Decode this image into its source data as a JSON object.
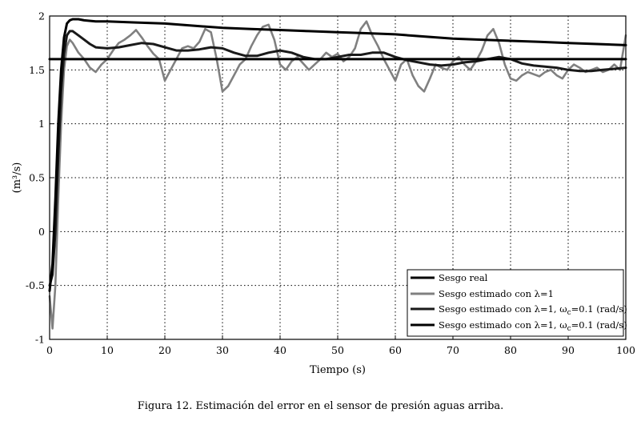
{
  "chart_data": {
    "type": "line",
    "xlabel": "Tiempo (s)",
    "ylabel": "(m³/s)",
    "xlim": [
      0,
      100
    ],
    "ylim": [
      -1,
      2
    ],
    "xticks": [
      0,
      10,
      20,
      30,
      40,
      50,
      60,
      70,
      80,
      90,
      100
    ],
    "yticks": [
      -1,
      -0.5,
      0,
      0.5,
      1,
      1.5,
      2
    ],
    "x_tick_labels": [
      "0",
      "10",
      "20",
      "30",
      "40",
      "50",
      "60",
      "70",
      "80",
      "90",
      "100"
    ],
    "y_tick_labels": [
      "-1",
      "-0.5",
      "0",
      "0.5",
      "1",
      "1.5",
      "2"
    ],
    "grid": true,
    "legend_position": "bottom-right",
    "series": [
      {
        "name": "Sesgo real",
        "color": "#000000",
        "x": [
          0,
          100
        ],
        "y": [
          1.6,
          1.6
        ]
      },
      {
        "name": "Sesgo estimado con λ=1",
        "color": "#808080",
        "x": [
          0,
          0.5,
          1,
          1.5,
          2,
          2.5,
          3,
          3.5,
          4,
          5,
          6,
          7,
          8,
          9,
          10,
          11,
          12,
          13,
          14,
          15,
          16,
          17,
          18,
          19,
          20,
          21,
          22,
          23,
          24,
          25,
          26,
          27,
          28,
          29,
          30,
          31,
          32,
          33,
          34,
          35,
          36,
          37,
          38,
          39,
          40,
          41,
          42,
          43,
          44,
          45,
          46,
          47,
          48,
          49,
          50,
          51,
          52,
          53,
          54,
          55,
          56,
          57,
          58,
          59,
          60,
          61,
          62,
          63,
          64,
          65,
          66,
          67,
          68,
          69,
          70,
          71,
          72,
          73,
          74,
          75,
          76,
          77,
          78,
          79,
          80,
          81,
          82,
          83,
          84,
          85,
          86,
          87,
          88,
          89,
          90,
          91,
          92,
          93,
          94,
          95,
          96,
          97,
          98,
          99,
          100
        ],
        "y": [
          -0.6,
          -0.9,
          -0.5,
          0.3,
          1.0,
          1.5,
          1.72,
          1.78,
          1.75,
          1.66,
          1.6,
          1.52,
          1.48,
          1.55,
          1.6,
          1.68,
          1.75,
          1.78,
          1.82,
          1.87,
          1.8,
          1.72,
          1.65,
          1.6,
          1.4,
          1.5,
          1.6,
          1.7,
          1.72,
          1.7,
          1.76,
          1.88,
          1.85,
          1.6,
          1.3,
          1.35,
          1.45,
          1.55,
          1.6,
          1.72,
          1.82,
          1.9,
          1.92,
          1.78,
          1.55,
          1.5,
          1.58,
          1.62,
          1.56,
          1.5,
          1.55,
          1.6,
          1.66,
          1.62,
          1.65,
          1.58,
          1.62,
          1.7,
          1.88,
          1.95,
          1.82,
          1.72,
          1.6,
          1.5,
          1.4,
          1.55,
          1.6,
          1.45,
          1.35,
          1.3,
          1.42,
          1.55,
          1.52,
          1.5,
          1.58,
          1.62,
          1.55,
          1.5,
          1.58,
          1.68,
          1.82,
          1.88,
          1.75,
          1.55,
          1.42,
          1.4,
          1.45,
          1.48,
          1.46,
          1.44,
          1.48,
          1.5,
          1.45,
          1.42,
          1.5,
          1.55,
          1.52,
          1.48,
          1.5,
          1.52,
          1.48,
          1.5,
          1.55,
          1.5,
          1.82
        ]
      },
      {
        "name": "Sesgo estimado con λ=1, ωc=0.1 (rad/s)",
        "color": "#1a1a1a",
        "x": [
          0,
          0.5,
          1,
          1.5,
          2,
          2.5,
          3,
          3.5,
          4,
          5,
          6,
          7,
          8,
          10,
          12,
          14,
          16,
          18,
          20,
          22,
          24,
          26,
          28,
          30,
          32,
          34,
          36,
          38,
          40,
          42,
          44,
          46,
          48,
          50,
          52,
          54,
          56,
          58,
          60,
          62,
          64,
          66,
          68,
          70,
          72,
          74,
          76,
          78,
          80,
          82,
          84,
          86,
          88,
          90,
          92,
          94,
          96,
          98,
          100
        ],
        "y": [
          -0.5,
          -0.4,
          0.0,
          0.7,
          1.3,
          1.65,
          1.82,
          1.86,
          1.86,
          1.82,
          1.78,
          1.74,
          1.71,
          1.7,
          1.71,
          1.73,
          1.75,
          1.74,
          1.71,
          1.68,
          1.68,
          1.69,
          1.71,
          1.7,
          1.66,
          1.63,
          1.63,
          1.66,
          1.68,
          1.66,
          1.62,
          1.6,
          1.6,
          1.62,
          1.64,
          1.64,
          1.66,
          1.66,
          1.62,
          1.59,
          1.57,
          1.55,
          1.54,
          1.55,
          1.57,
          1.58,
          1.6,
          1.62,
          1.6,
          1.56,
          1.54,
          1.53,
          1.52,
          1.5,
          1.49,
          1.49,
          1.5,
          1.51,
          1.52
        ]
      },
      {
        "name": "Sesgo estimado con λ=1, ωc=0.1 (rad/s)",
        "color": "#000000",
        "x": [
          0,
          0.5,
          1,
          1.5,
          2,
          2.5,
          3,
          3.5,
          4,
          5,
          6,
          8,
          10,
          15,
          20,
          25,
          30,
          35,
          40,
          45,
          50,
          55,
          60,
          65,
          70,
          75,
          80,
          85,
          90,
          95,
          100
        ],
        "y": [
          -0.55,
          -0.3,
          0.3,
          1.0,
          1.5,
          1.8,
          1.93,
          1.96,
          1.97,
          1.97,
          1.96,
          1.95,
          1.95,
          1.94,
          1.93,
          1.91,
          1.89,
          1.88,
          1.87,
          1.86,
          1.85,
          1.84,
          1.83,
          1.81,
          1.79,
          1.78,
          1.77,
          1.76,
          1.75,
          1.74,
          1.73
        ]
      }
    ]
  },
  "caption": "Figura 12. Estimación del error en el sensor de presión aguas arriba.",
  "legend": {
    "items": [
      {
        "label": "Sesgo real"
      },
      {
        "label": "Sesgo estimado con λ=1"
      },
      {
        "label_main": "Sesgo estimado con λ=1, ω",
        "label_sub": "c",
        "label_tail": "=0.1 (rad/s)"
      },
      {
        "label_main": "Sesgo estimado con λ=1, ω",
        "label_sub": "c",
        "label_tail": "=0.1 (rad/s)"
      }
    ]
  }
}
